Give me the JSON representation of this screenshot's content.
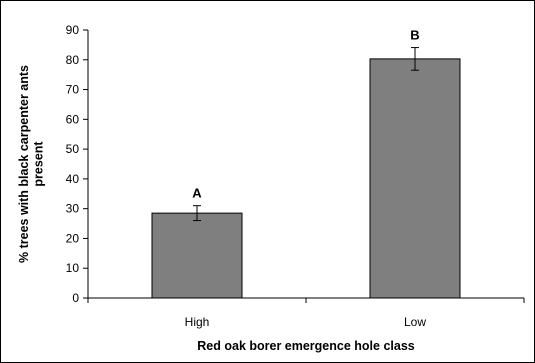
{
  "chart_data": {
    "type": "bar",
    "categories": [
      "High",
      "Low"
    ],
    "values": [
      28.5,
      80.3
    ],
    "error": [
      2.5,
      3.8
    ],
    "significance_letters": [
      "A",
      "B"
    ],
    "title": "",
    "xlabel": "Red oak borer emergence hole class",
    "ylabel": "% trees with black carpenter ants present",
    "ylim": [
      0,
      90
    ],
    "yticks": [
      0,
      10,
      20,
      30,
      40,
      50,
      60,
      70,
      80,
      90
    ],
    "grid": false,
    "legend": "none",
    "colors": {
      "bar": "#7f7f7f",
      "bar_edge": "#000000",
      "axis": "#000000"
    }
  }
}
